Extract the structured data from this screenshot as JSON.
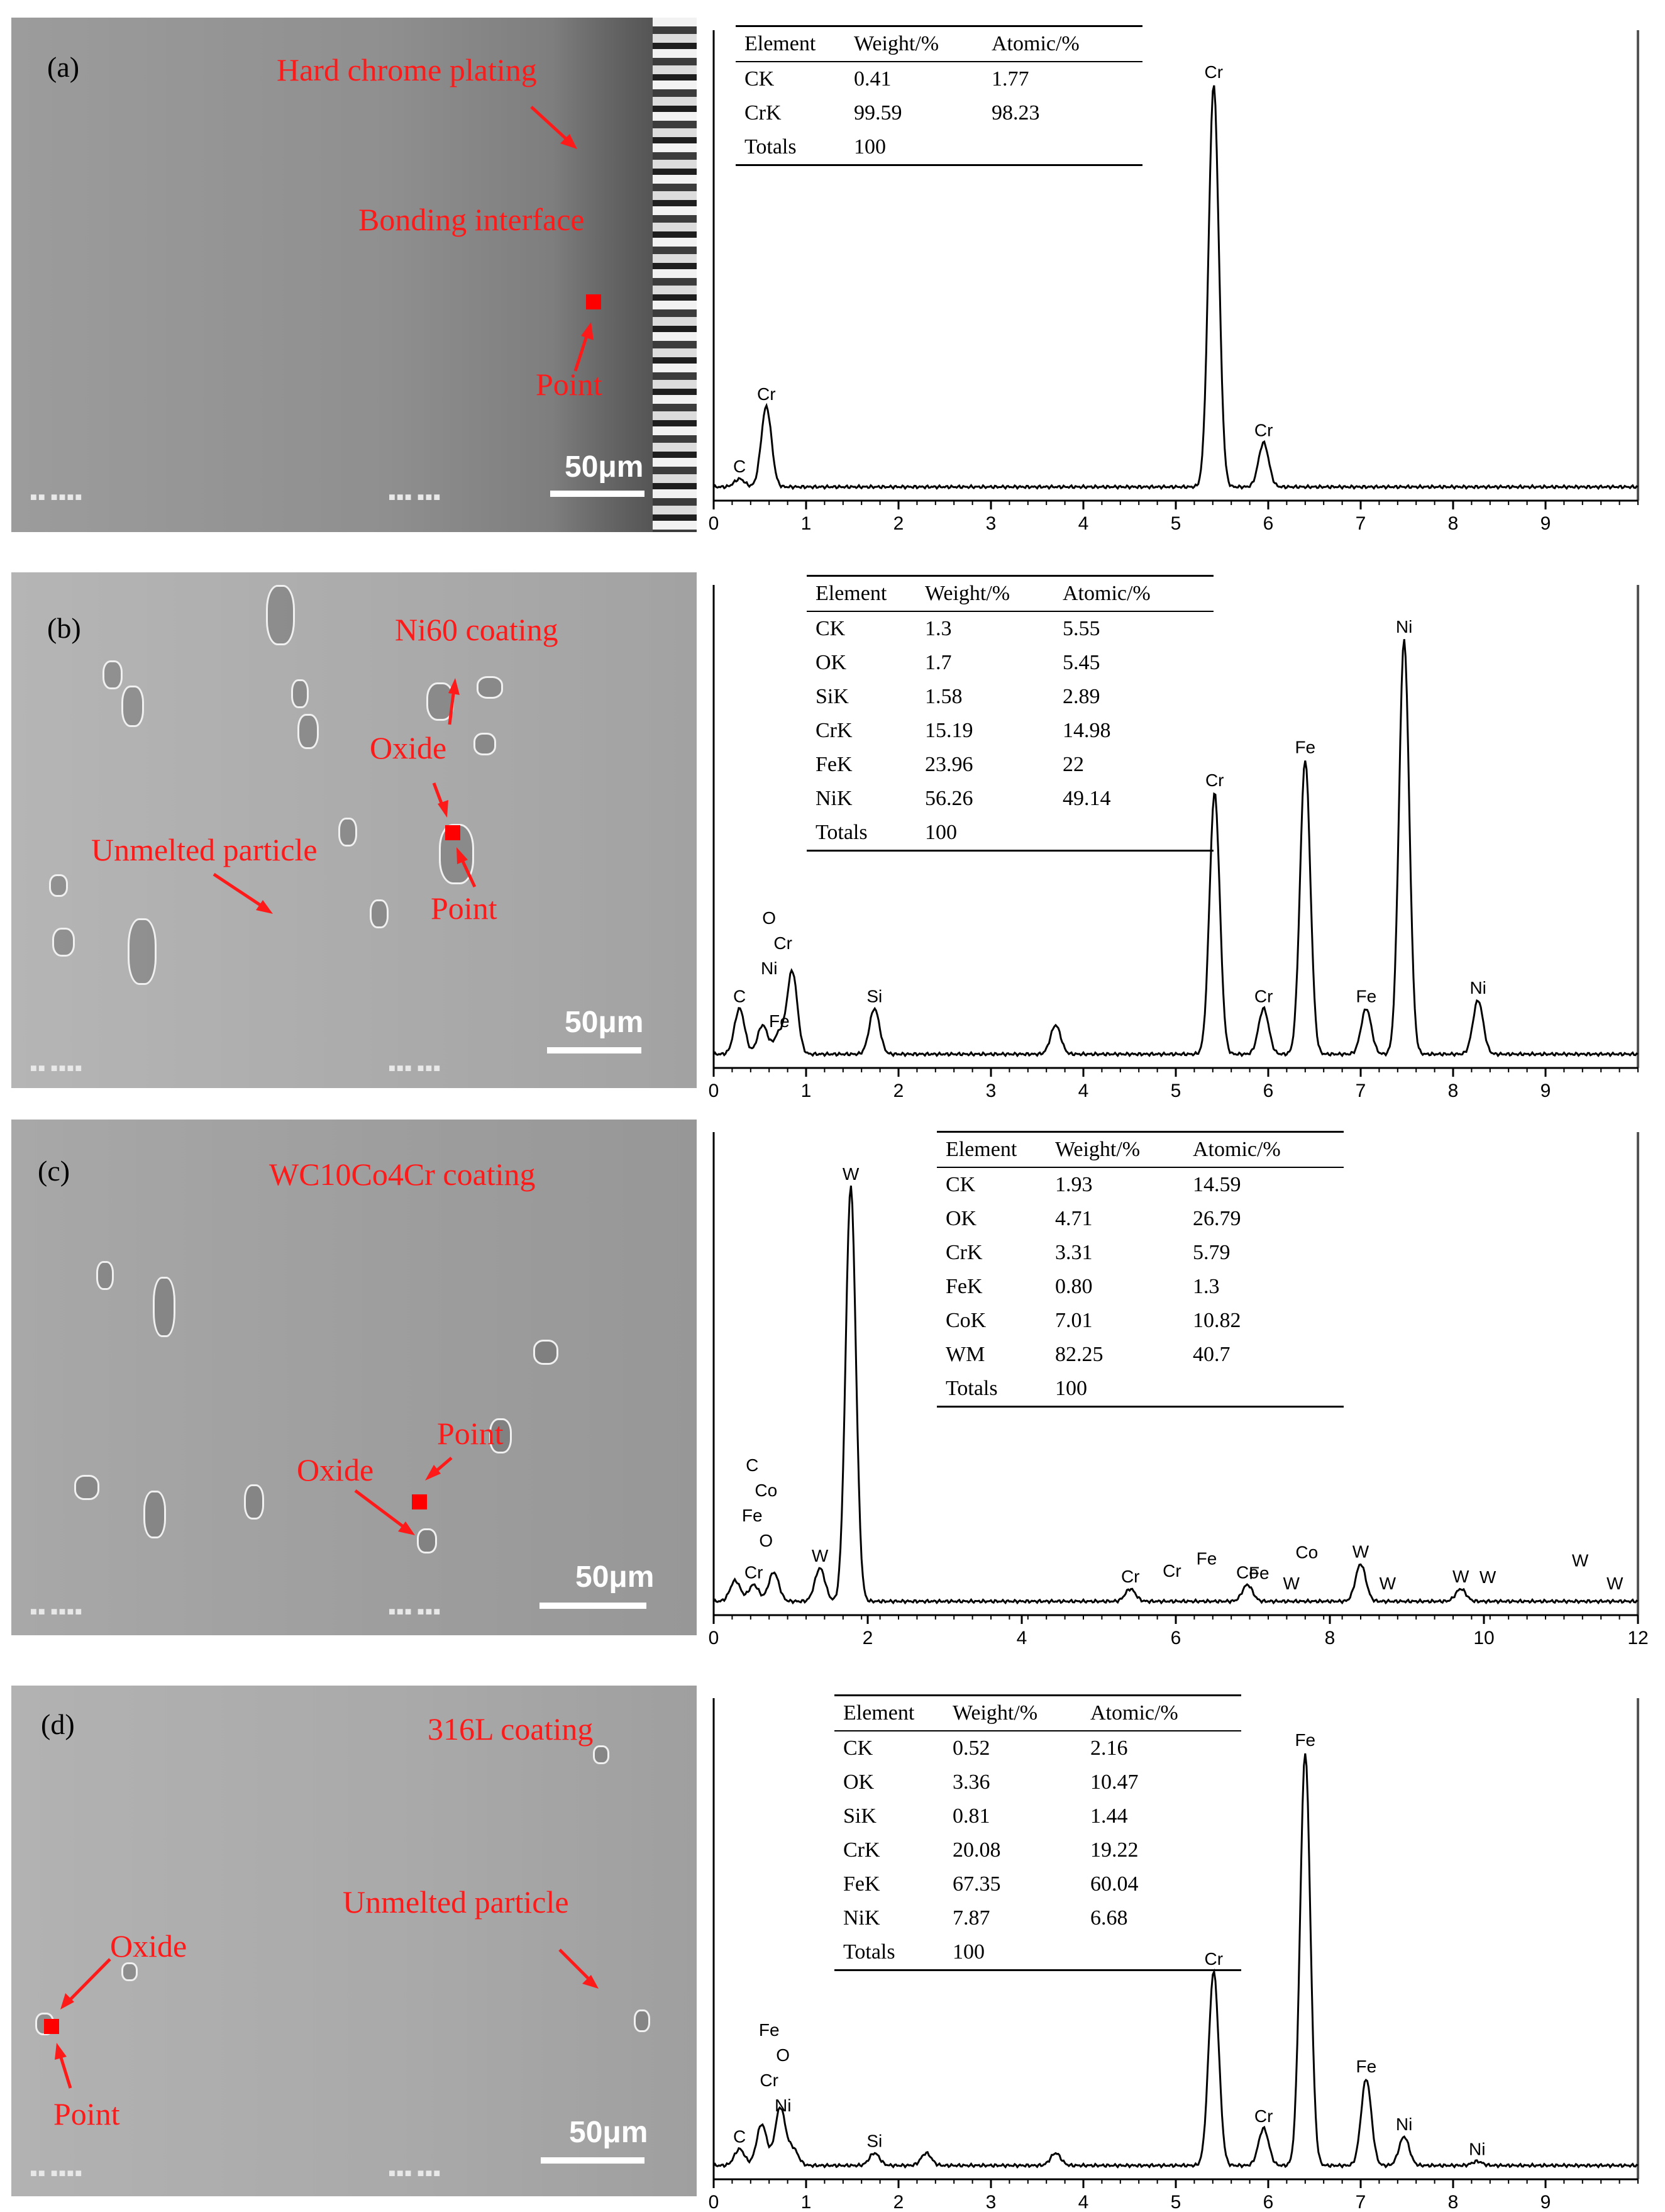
{
  "panels": [
    {
      "id": "a",
      "label": "(a)",
      "annotations": {
        "coating": "Hard chrome plating",
        "interface": "Bonding interface",
        "point": "Point"
      },
      "scale": "50μm",
      "table": {
        "headers": [
          "Element",
          "Weight/%",
          "Atomic/%"
        ],
        "rows": [
          [
            "CK",
            "0.41",
            "1.77"
          ],
          [
            "CrK",
            "99.59",
            "98.23"
          ],
          [
            "Totals",
            "100",
            ""
          ]
        ]
      },
      "spectrum": {
        "type": "line",
        "xlim": [
          0,
          10
        ],
        "x_ticks": [
          "0",
          "1",
          "2",
          "3",
          "4",
          "5",
          "6",
          "7",
          "8",
          "9"
        ],
        "peaks": [
          {
            "x": 0.28,
            "h": 0.02,
            "label": "C"
          },
          {
            "x": 0.57,
            "h": 0.2,
            "label": "Cr"
          },
          {
            "x": 5.41,
            "h": 1.0,
            "label": "Cr"
          },
          {
            "x": 5.95,
            "h": 0.11,
            "label": "Cr"
          }
        ]
      }
    },
    {
      "id": "b",
      "label": "(b)",
      "annotations": {
        "coating": "Ni60 coating",
        "oxide": "Oxide",
        "unmelted": "Unmelted particle",
        "point": "Point"
      },
      "scale": "50μm",
      "table": {
        "headers": [
          "Element",
          "Weight/%",
          "Atomic/%"
        ],
        "rows": [
          [
            "CK",
            "1.3",
            "5.55"
          ],
          [
            "OK",
            "1.7",
            "5.45"
          ],
          [
            "SiK",
            "1.58",
            "2.89"
          ],
          [
            "CrK",
            "15.19",
            "14.98"
          ],
          [
            "FeK",
            "23.96",
            "22"
          ],
          [
            "NiK",
            "56.26",
            "49.14"
          ],
          [
            "Totals",
            "100",
            ""
          ]
        ]
      },
      "spectrum": {
        "type": "line",
        "xlim": [
          0,
          10
        ],
        "x_ticks": [
          "0",
          "1",
          "2",
          "3",
          "4",
          "5",
          "6",
          "7",
          "8",
          "9"
        ],
        "peaks": [
          {
            "x": 0.28,
            "h": 0.11,
            "label": "C"
          },
          {
            "x": 0.53,
            "h": 0.07,
            "label": ""
          },
          {
            "x": 0.71,
            "h": 0.05,
            "label": "Fe"
          },
          {
            "x": 0.85,
            "h": 0.2,
            "label": ""
          },
          {
            "x": 1.74,
            "h": 0.11,
            "label": "Si"
          },
          {
            "x": 3.7,
            "h": 0.07,
            "label": ""
          },
          {
            "x": 5.42,
            "h": 0.63,
            "label": "Cr"
          },
          {
            "x": 5.95,
            "h": 0.11,
            "label": "Cr"
          },
          {
            "x": 6.4,
            "h": 0.71,
            "label": "Fe"
          },
          {
            "x": 7.06,
            "h": 0.11,
            "label": "Fe"
          },
          {
            "x": 7.47,
            "h": 1.0,
            "label": "Ni"
          },
          {
            "x": 8.27,
            "h": 0.13,
            "label": "Ni"
          }
        ],
        "stacked_labels": {
          "x": 0.6,
          "lines": [
            "O",
            "Cr",
            "Ni"
          ]
        }
      }
    },
    {
      "id": "c",
      "label": "(c)",
      "annotations": {
        "coating": "WC10Co4Cr coating",
        "point": "Point",
        "oxide": "Oxide"
      },
      "scale": "50μm",
      "table": {
        "headers": [
          "Element",
          "Weight/%",
          "Atomic/%"
        ],
        "rows": [
          [
            "CK",
            "1.93",
            "14.59"
          ],
          [
            "OK",
            "4.71",
            "26.79"
          ],
          [
            "CrK",
            "3.31",
            "5.79"
          ],
          [
            "FeK",
            "0.80",
            "1.3"
          ],
          [
            "CoK",
            "7.01",
            "10.82"
          ],
          [
            "WM",
            "82.25",
            "40.7"
          ],
          [
            "Totals",
            "100",
            ""
          ]
        ]
      },
      "spectrum": {
        "type": "line",
        "xlim": [
          0,
          12
        ],
        "x_ticks": [
          "0",
          "2",
          "4",
          "6",
          "8",
          "10",
          "12"
        ],
        "peaks": [
          {
            "x": 0.28,
            "h": 0.05,
            "label": ""
          },
          {
            "x": 0.52,
            "h": 0.04,
            "label": "Cr"
          },
          {
            "x": 0.78,
            "h": 0.07,
            "label": ""
          },
          {
            "x": 1.38,
            "h": 0.08,
            "label": "W"
          },
          {
            "x": 1.78,
            "h": 1.0,
            "label": "W"
          },
          {
            "x": 5.41,
            "h": 0.03,
            "label": "Cr"
          },
          {
            "x": 6.93,
            "h": 0.04,
            "label": "Co"
          },
          {
            "x": 8.4,
            "h": 0.09,
            "label": "W"
          },
          {
            "x": 9.7,
            "h": 0.03,
            "label": "W"
          }
        ],
        "floating_labels": [
          {
            "x": 5.95,
            "y": 0.065,
            "text": "Cr"
          },
          {
            "x": 6.4,
            "y": 0.095,
            "text": "Fe"
          },
          {
            "x": 7.08,
            "y": 0.06,
            "text": "Fe"
          },
          {
            "x": 7.5,
            "y": 0.035,
            "text": "W"
          },
          {
            "x": 7.7,
            "y": 0.11,
            "text": "Co"
          },
          {
            "x": 8.75,
            "y": 0.035,
            "text": "W"
          },
          {
            "x": 10.05,
            "y": 0.05,
            "text": "W"
          },
          {
            "x": 11.25,
            "y": 0.09,
            "text": "W"
          },
          {
            "x": 11.7,
            "y": 0.035,
            "text": "W"
          }
        ],
        "stacked_labels": {
          "x": 0.5,
          "lines": [
            "C",
            "Co",
            "Fe",
            "O"
          ]
        }
      }
    },
    {
      "id": "d",
      "label": "(d)",
      "annotations": {
        "coating": "316L coating",
        "unmelted": "Unmelted particle",
        "oxide": "Oxide",
        "point": "Point"
      },
      "scale": "50μm",
      "table": {
        "headers": [
          "Element",
          "Weight/%",
          "Atomic/%"
        ],
        "rows": [
          [
            "CK",
            "0.52",
            "2.16"
          ],
          [
            "OK",
            "3.36",
            "10.47"
          ],
          [
            "SiK",
            "0.81",
            "1.44"
          ],
          [
            "CrK",
            "20.08",
            "19.22"
          ],
          [
            "FeK",
            "67.35",
            "60.04"
          ],
          [
            "NiK",
            "7.87",
            "6.68"
          ],
          [
            "Totals",
            "100",
            ""
          ]
        ]
      },
      "spectrum": {
        "type": "line",
        "xlim": [
          0,
          10
        ],
        "x_ticks": [
          "0",
          "1",
          "2",
          "3",
          "4",
          "5",
          "6",
          "7",
          "8",
          "9"
        ],
        "peaks": [
          {
            "x": 0.28,
            "h": 0.04,
            "label": "C"
          },
          {
            "x": 0.52,
            "h": 0.1,
            "label": ""
          },
          {
            "x": 0.72,
            "h": 0.14,
            "label": ""
          },
          {
            "x": 0.86,
            "h": 0.04,
            "label": ""
          },
          {
            "x": 1.74,
            "h": 0.03,
            "label": "Si"
          },
          {
            "x": 2.3,
            "h": 0.03,
            "label": ""
          },
          {
            "x": 3.7,
            "h": 0.03,
            "label": ""
          },
          {
            "x": 5.41,
            "h": 0.47,
            "label": "Cr"
          },
          {
            "x": 5.95,
            "h": 0.09,
            "label": "Cr"
          },
          {
            "x": 6.4,
            "h": 1.0,
            "label": "Fe"
          },
          {
            "x": 7.06,
            "h": 0.21,
            "label": "Fe"
          },
          {
            "x": 7.47,
            "h": 0.07,
            "label": "Ni"
          },
          {
            "x": 8.26,
            "h": 0.01,
            "label": "Ni"
          }
        ],
        "stacked_labels": {
          "x": 0.6,
          "lines": [
            "Fe",
            "O",
            "Cr",
            "Ni"
          ]
        }
      }
    }
  ]
}
